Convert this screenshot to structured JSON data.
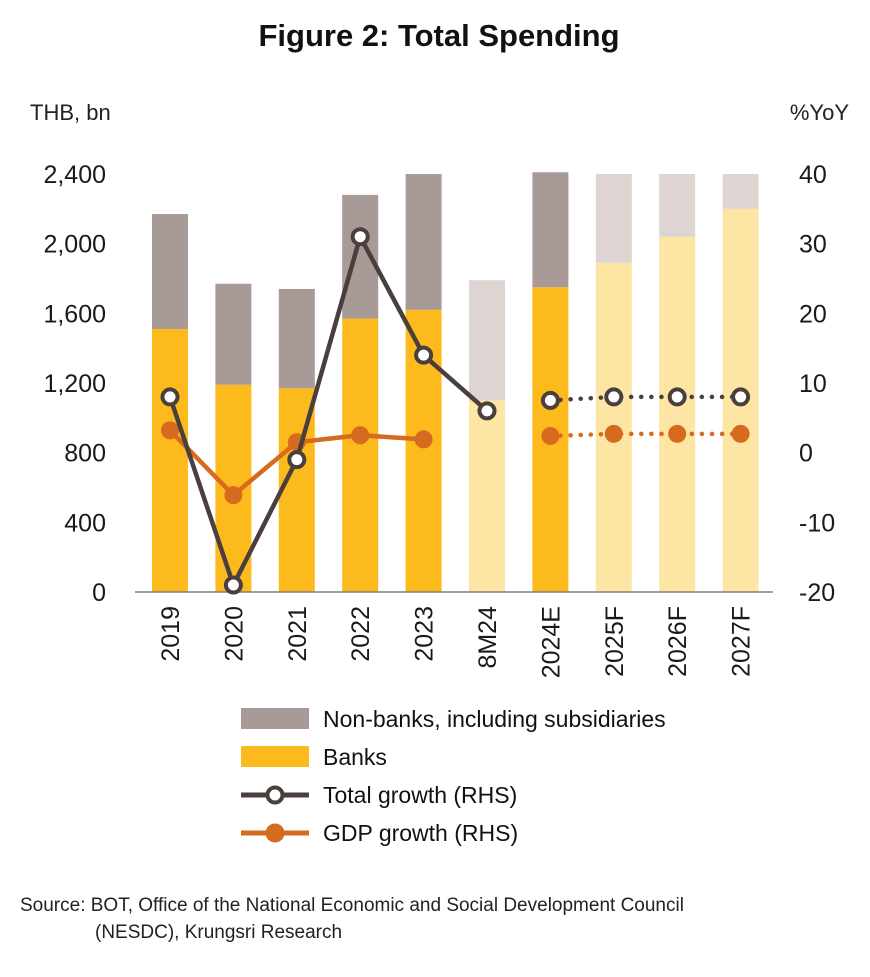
{
  "title": "Figure 2: Total Spending",
  "source": {
    "line1": "Source: BOT, Office of the National Economic and Social Development Council",
    "line2": "(NESDC), Krungsri Research"
  },
  "colors": {
    "banks": "#FDBA1D",
    "banks_light": "#FDE5A4",
    "nonbanks": "#A89A97",
    "nonbanks_light": "#DED4D2",
    "total_growth": "#4A3F3C",
    "gdp_growth": "#D66A1E"
  },
  "chart_data": {
    "type": "bar",
    "title": "Figure 2: Total Spending",
    "y_left_label": "THB, bn",
    "y_right_label": "%YoY",
    "y_left_ticks": [
      "2,400",
      "2,000",
      "1,600",
      "1,200",
      "800",
      "400",
      "0"
    ],
    "y_right_ticks": [
      "40",
      "30",
      "20",
      "10",
      "0",
      "-10",
      "-20"
    ],
    "ylim_left": [
      0,
      2400
    ],
    "ylim_right": [
      -20,
      40
    ],
    "categories": [
      "2019",
      "2020",
      "2021",
      "2022",
      "2023",
      "8M24",
      "2024E",
      "2025F",
      "2026F",
      "2027F"
    ],
    "light_categories": [
      "8M24",
      "2025F",
      "2026F",
      "2027F"
    ],
    "grid": false,
    "legend_position": "bottom",
    "series": [
      {
        "name": "Non-banks, including subsidiaries",
        "kind": "bar-stacked",
        "values": [
          660,
          580,
          570,
          710,
          780,
          690,
          660,
          510,
          360,
          200
        ]
      },
      {
        "name": "Banks",
        "kind": "bar-stacked",
        "values": [
          1510,
          1190,
          1170,
          1570,
          1620,
          1100,
          1750,
          1890,
          2040,
          2200
        ]
      },
      {
        "name": "Total growth (RHS)",
        "kind": "line-axis-right",
        "values": [
          8,
          -19,
          -1,
          31,
          14,
          6,
          7.5,
          8,
          8,
          8
        ],
        "dotted_from": "2024E"
      },
      {
        "name": "GDP growth (RHS)",
        "kind": "line-axis-right",
        "values": [
          3.2,
          -6.1,
          1.5,
          2.5,
          1.9,
          null,
          2.4,
          2.7,
          2.7,
          2.7
        ],
        "dotted_from": "2024E"
      }
    ]
  }
}
